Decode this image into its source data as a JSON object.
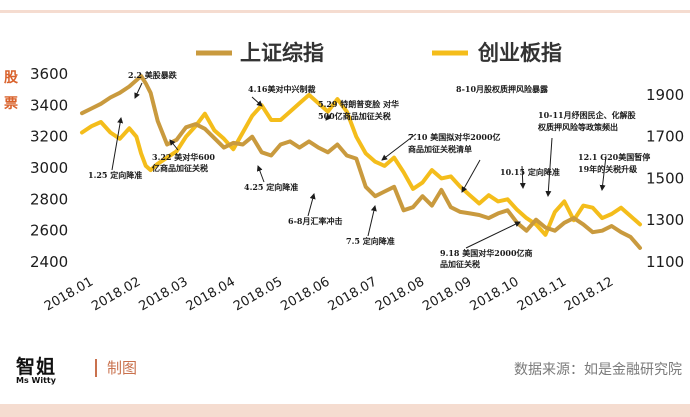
{
  "colors": {
    "frame": "#f5dcd0",
    "sse": "#c99a3e",
    "chinext": "#f4bd1b",
    "axis_label": "#d9622c",
    "made_by": "#c9714d",
    "source": "#7a7a7a"
  },
  "brand": {
    "logo_cn": "智姐",
    "logo_en": "Ms Witty",
    "made_by": "制图",
    "source": "数据来源：如是金融研究院"
  },
  "chart_data": {
    "type": "line",
    "ylabel": "股票",
    "legend_position": "top-center",
    "grid": false,
    "x_categories": [
      "2018.01",
      "2018.02",
      "2018.03",
      "2018.04",
      "2018.05",
      "2018.06",
      "2018.07",
      "2018.08",
      "2018.09",
      "2018.10",
      "2018.11",
      "2018.12"
    ],
    "x_range": [
      0,
      11.8
    ],
    "ylim_left": [
      2400,
      3600
    ],
    "yticks_left": [
      2400,
      2600,
      2800,
      3000,
      3200,
      3400,
      3600
    ],
    "ylim_right": [
      1100,
      2000
    ],
    "yticks_right": [
      1100,
      1300,
      1500,
      1700,
      1900
    ],
    "series": [
      {
        "name": "上证综指",
        "axis": "left",
        "color_key": "sse",
        "x": [
          0,
          0.2,
          0.4,
          0.6,
          0.8,
          1.0,
          1.15,
          1.25,
          1.35,
          1.45,
          1.6,
          1.8,
          2.0,
          2.2,
          2.4,
          2.6,
          2.8,
          3.0,
          3.2,
          3.4,
          3.6,
          3.8,
          4.0,
          4.2,
          4.4,
          4.6,
          4.8,
          5.0,
          5.2,
          5.4,
          5.6,
          5.8,
          6.0,
          6.2,
          6.4,
          6.6,
          6.8,
          7.0,
          7.2,
          7.4,
          7.6,
          7.8,
          8.0,
          8.2,
          8.4,
          8.6,
          8.8,
          9.0,
          9.2,
          9.4,
          9.6,
          9.8,
          10.0,
          10.2,
          10.4,
          10.6,
          10.8,
          11.0,
          11.2,
          11.4,
          11.6,
          11.8
        ],
        "y": [
          3350,
          3380,
          3410,
          3450,
          3480,
          3520,
          3560,
          3587,
          3540,
          3480,
          3300,
          3150,
          3180,
          3260,
          3280,
          3250,
          3190,
          3130,
          3160,
          3150,
          3200,
          3100,
          3080,
          3150,
          3170,
          3130,
          3170,
          3130,
          3100,
          3150,
          3080,
          3060,
          2880,
          2820,
          2850,
          2880,
          2730,
          2750,
          2820,
          2760,
          2860,
          2750,
          2720,
          2710,
          2700,
          2680,
          2710,
          2730,
          2650,
          2600,
          2670,
          2620,
          2600,
          2650,
          2680,
          2640,
          2590,
          2600,
          2630,
          2590,
          2560,
          2490
        ]
      },
      {
        "name": "创业板指",
        "axis": "right",
        "color_key": "chinext",
        "x": [
          0,
          0.2,
          0.4,
          0.6,
          0.8,
          1.0,
          1.15,
          1.25,
          1.35,
          1.45,
          1.6,
          1.8,
          2.0,
          2.2,
          2.4,
          2.6,
          2.8,
          3.0,
          3.2,
          3.4,
          3.6,
          3.8,
          4.0,
          4.2,
          4.4,
          4.6,
          4.8,
          5.0,
          5.2,
          5.4,
          5.6,
          5.8,
          6.0,
          6.2,
          6.4,
          6.6,
          6.8,
          7.0,
          7.2,
          7.4,
          7.6,
          7.8,
          8.0,
          8.2,
          8.4,
          8.6,
          8.8,
          9.0,
          9.2,
          9.4,
          9.6,
          9.8,
          10.0,
          10.2,
          10.4,
          10.6,
          10.8,
          11.0,
          11.2,
          11.4,
          11.6,
          11.8
        ],
        "y": [
          1720,
          1750,
          1770,
          1720,
          1690,
          1740,
          1700,
          1620,
          1560,
          1540,
          1570,
          1600,
          1630,
          1700,
          1750,
          1810,
          1730,
          1690,
          1640,
          1720,
          1800,
          1850,
          1780,
          1780,
          1820,
          1860,
          1900,
          1860,
          1820,
          1880,
          1820,
          1700,
          1620,
          1580,
          1560,
          1600,
          1530,
          1450,
          1480,
          1540,
          1500,
          1510,
          1460,
          1420,
          1380,
          1420,
          1390,
          1400,
          1350,
          1310,
          1280,
          1230,
          1340,
          1390,
          1300,
          1370,
          1360,
          1310,
          1330,
          1360,
          1320,
          1280
        ]
      }
    ],
    "annotations": [
      {
        "text": "2.2 美股暴跌",
        "x": 1.1,
        "sx": 1.1
      },
      {
        "text": "1.25 定向降准",
        "x": 0.8,
        "sx": 0.8
      },
      {
        "text": "3.22 美对华600",
        "x": 2.6,
        "sx": 2.6
      },
      {
        "text": "亿商品加征关税",
        "x": 2.6,
        "sx": 2.6
      },
      {
        "text": "4.16美对中兴制裁",
        "x": 3.5,
        "sx": 3.5
      },
      {
        "text": "4.25 定向降准",
        "x": 3.8,
        "sx": 3.8
      },
      {
        "text": "5.29 特朗普变脸 对华",
        "x": 5.0,
        "sx": 5.0
      },
      {
        "text": "500亿商品加征关税",
        "x": 5.0,
        "sx": 5.0
      },
      {
        "text": "6-8月汇率冲击",
        "x": 5.9,
        "sx": 5.9
      },
      {
        "text": "7.10 美国拟对华2000亿",
        "x": 7.0,
        "sx": 7.0
      },
      {
        "text": "商品加征关税清单",
        "x": 7.0,
        "sx": 7.0
      },
      {
        "text": "7.5 定向降准",
        "x": 6.8,
        "sx": 6.8
      },
      {
        "text": "8-10月股权质押风险暴露",
        "x": 8.5,
        "sx": 8.5
      },
      {
        "text": "10-11月纾困民企、化解股",
        "x": 10.0,
        "sx": 10.0
      },
      {
        "text": "权质押风险等政策频出",
        "x": 10.0,
        "sx": 10.0
      },
      {
        "text": "10.15 定向降准",
        "x": 9.4,
        "sx": 9.4
      },
      {
        "text": "9.18 美国对华2000亿商",
        "x": 8.3,
        "sx": 8.3
      },
      {
        "text": "品加征关税",
        "x": 8.3,
        "sx": 8.3
      },
      {
        "text": "12.1 G20美国暂停",
        "x": 10.7,
        "sx": 10.7
      },
      {
        "text": "19年的关税升级",
        "x": 10.7,
        "sx": 10.7
      }
    ]
  }
}
